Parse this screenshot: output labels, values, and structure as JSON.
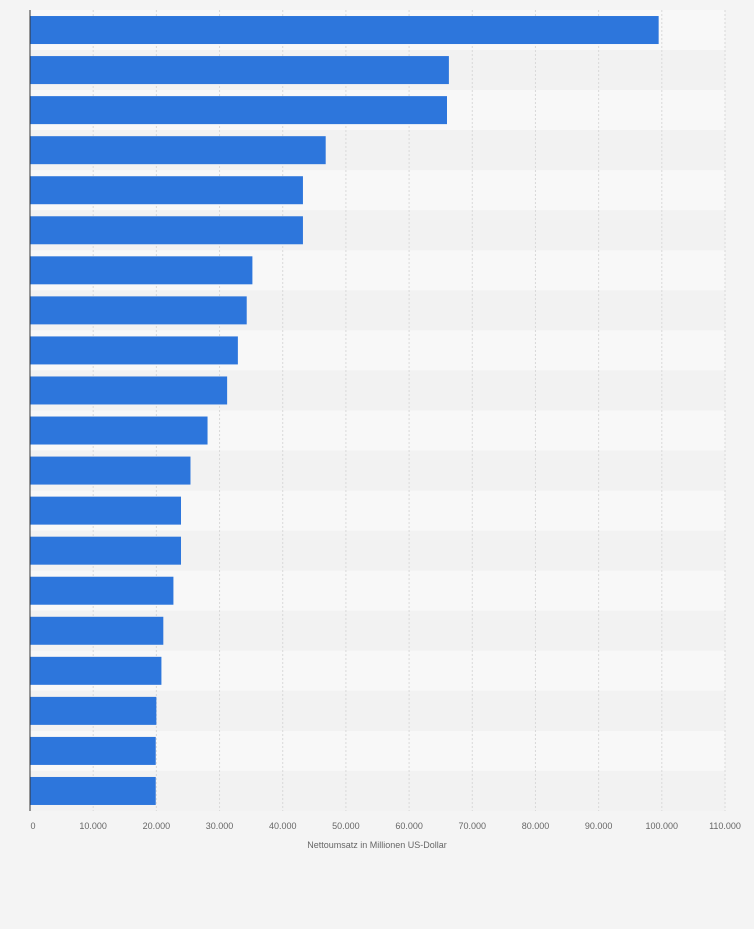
{
  "colors": {
    "bar": "#2d76dc",
    "band_light": "#f8f8f8",
    "band_dark": "#f2f2f2",
    "grid": "#d9d9d9",
    "axis": "#333333",
    "text": "#666666",
    "page": "#f4f4f4"
  },
  "chart_data": {
    "type": "bar",
    "orientation": "horizontal",
    "title": "",
    "xlabel": "Nettoumsatz in Millionen US-Dollar",
    "ylabel": "",
    "xlim": [
      0,
      110000
    ],
    "grid": true,
    "tick_values": [
      0,
      10000,
      20000,
      30000,
      40000,
      50000,
      60000,
      70000,
      80000,
      90000,
      100000,
      110000
    ],
    "tick_labels": [
      "0",
      "10.000",
      "20.000",
      "30.000",
      "40.000",
      "50.000",
      "60.000",
      "70.000",
      "80.000",
      "90.000",
      "100.000",
      "110.000"
    ],
    "values": [
      99500,
      66300,
      66000,
      46800,
      43200,
      43200,
      35200,
      34300,
      32900,
      31200,
      28100,
      25400,
      23900,
      23900,
      22700,
      21100,
      20800,
      20000,
      19900,
      19900
    ]
  }
}
